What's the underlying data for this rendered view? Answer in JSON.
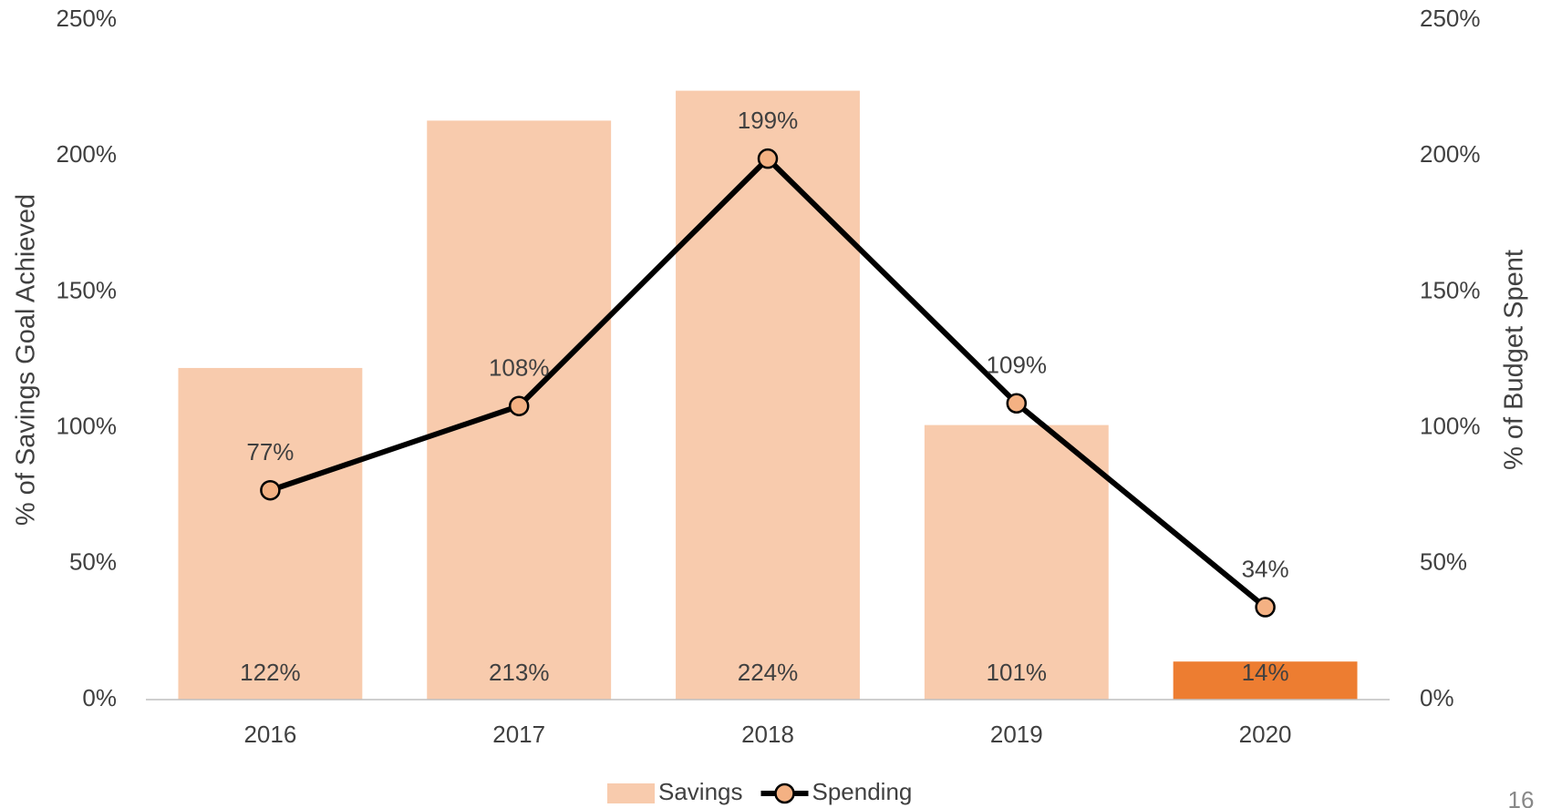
{
  "chart_data": {
    "type": "bar_line",
    "categories": [
      "2016",
      "2017",
      "2018",
      "2019",
      "2020"
    ],
    "series": [
      {
        "name": "Savings",
        "type": "bar",
        "color": "#f8cbad",
        "colors": [
          "#f8cbad",
          "#f8cbad",
          "#f8cbad",
          "#f8cbad",
          "#ed7d31"
        ],
        "values": [
          122,
          213,
          224,
          101,
          14
        ],
        "value_labels": [
          "122%",
          "213%",
          "224%",
          "101%",
          "14%"
        ]
      },
      {
        "name": "Spending",
        "type": "line",
        "axis": "y2",
        "color": "#000000",
        "marker_color": "#f4b183",
        "values": [
          77,
          108,
          199,
          109,
          34
        ],
        "value_labels": [
          "77%",
          "108%",
          "199%",
          "109%",
          "34%"
        ]
      }
    ],
    "ylabel": "% of Savings Goal Achieved",
    "y2label": "% of Budget Spent",
    "ylim": [
      0,
      250
    ],
    "yticks": [
      {
        "value": 0,
        "label": "0%"
      },
      {
        "value": 50,
        "label": "50%"
      },
      {
        "value": 100,
        "label": "100%"
      },
      {
        "value": 150,
        "label": "150%"
      },
      {
        "value": 200,
        "label": "200%"
      },
      {
        "value": 250,
        "label": "250%"
      }
    ],
    "y2lim": [
      0,
      250
    ],
    "y2ticks": [
      {
        "value": 0,
        "label": "0%"
      },
      {
        "value": 50,
        "label": "50%"
      },
      {
        "value": 100,
        "label": "100%"
      },
      {
        "value": 150,
        "label": "150%"
      },
      {
        "value": 200,
        "label": "200%"
      },
      {
        "value": 250,
        "label": "250%"
      }
    ],
    "legend": "bottom",
    "page_number": "16"
  }
}
